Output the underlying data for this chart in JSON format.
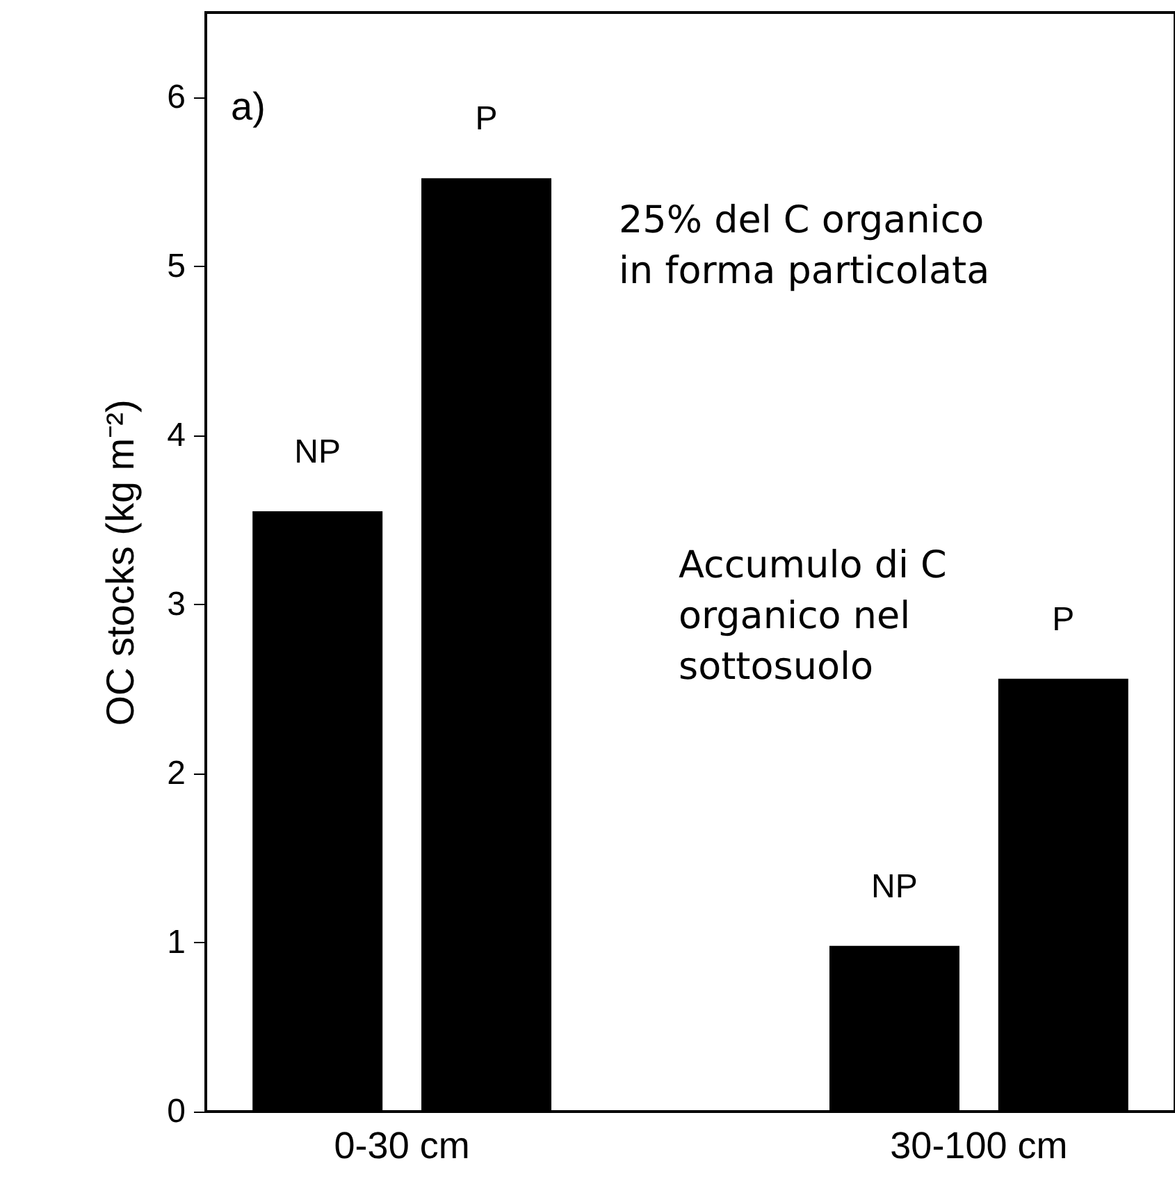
{
  "chart_data": {
    "type": "bar",
    "ylabel": "OC stocks (kg m⁻²)",
    "categories": [
      "0-30 cm",
      "30-100 cm"
    ],
    "series": [
      {
        "name": "NP",
        "color": "#000000",
        "values": [
          3.55,
          0.98
        ]
      },
      {
        "name": "P",
        "color": "#000000",
        "values": [
          5.52,
          2.56
        ]
      }
    ],
    "ylim": [
      0,
      6.5
    ],
    "yticks": [
      0,
      1,
      2,
      3,
      4,
      5,
      6
    ],
    "grid": false,
    "annotations": [
      "a)",
      "25% del C organico\nin forma particolata",
      "Accumulo di C\norganico nel\nsottosuolo"
    ]
  }
}
